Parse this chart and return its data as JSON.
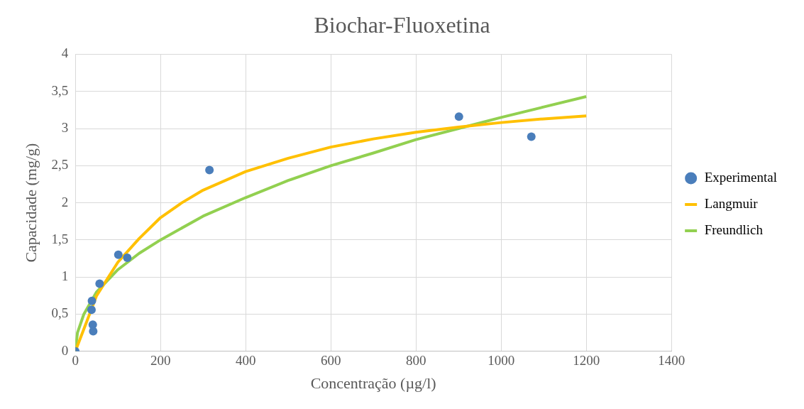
{
  "chart_data": {
    "type": "scatter",
    "title": "Biochar-Fluoxetina",
    "xlabel": "Concentração (µg/l)",
    "ylabel": "Capacidade (mg/g)",
    "xlim": [
      0,
      1400
    ],
    "xticks": [
      0,
      200,
      400,
      600,
      800,
      1000,
      1200,
      1400
    ],
    "ylim": [
      0,
      4
    ],
    "yticks": [
      {
        "value": 0,
        "label": "0"
      },
      {
        "value": 0.5,
        "label": "0,5"
      },
      {
        "value": 1,
        "label": "1"
      },
      {
        "value": 1.5,
        "label": "1,5"
      },
      {
        "value": 2,
        "label": "2"
      },
      {
        "value": 2.5,
        "label": "2,5"
      },
      {
        "value": 3,
        "label": "3"
      },
      {
        "value": 3.5,
        "label": "3,5"
      },
      {
        "value": 4,
        "label": "4"
      }
    ],
    "grid": true,
    "legend": "right",
    "series": [
      {
        "name": "Experimental",
        "type": "scatter",
        "marker": "circle",
        "color": "#4a7ebb",
        "x": [
          0,
          38,
          39,
          41,
          42,
          57,
          101,
          122,
          315,
          901,
          1071
        ],
        "values": [
          0,
          0.56,
          0.68,
          0.36,
          0.27,
          0.91,
          1.3,
          1.26,
          2.44,
          3.16,
          2.89
        ]
      },
      {
        "name": "Langmuir",
        "type": "line",
        "marker": "none",
        "color": "#ffc000",
        "x": [
          0,
          20,
          50,
          100,
          150,
          200,
          250,
          300,
          400,
          500,
          600,
          700,
          800,
          900,
          1000,
          1100,
          1200
        ],
        "values": [
          0,
          0.3,
          0.75,
          1.2,
          1.52,
          1.8,
          2.0,
          2.17,
          2.42,
          2.6,
          2.75,
          2.86,
          2.95,
          3.02,
          3.08,
          3.13,
          3.17
        ]
      },
      {
        "name": "Freundlich",
        "type": "line",
        "marker": "none",
        "color": "#92d050",
        "x": [
          0,
          5,
          20,
          50,
          100,
          150,
          200,
          300,
          400,
          500,
          600,
          700,
          800,
          900,
          1000,
          1100,
          1200
        ],
        "values": [
          0,
          0.25,
          0.5,
          0.8,
          1.1,
          1.32,
          1.5,
          1.82,
          2.07,
          2.3,
          2.5,
          2.67,
          2.85,
          3.0,
          3.15,
          3.29,
          3.43
        ]
      }
    ]
  }
}
